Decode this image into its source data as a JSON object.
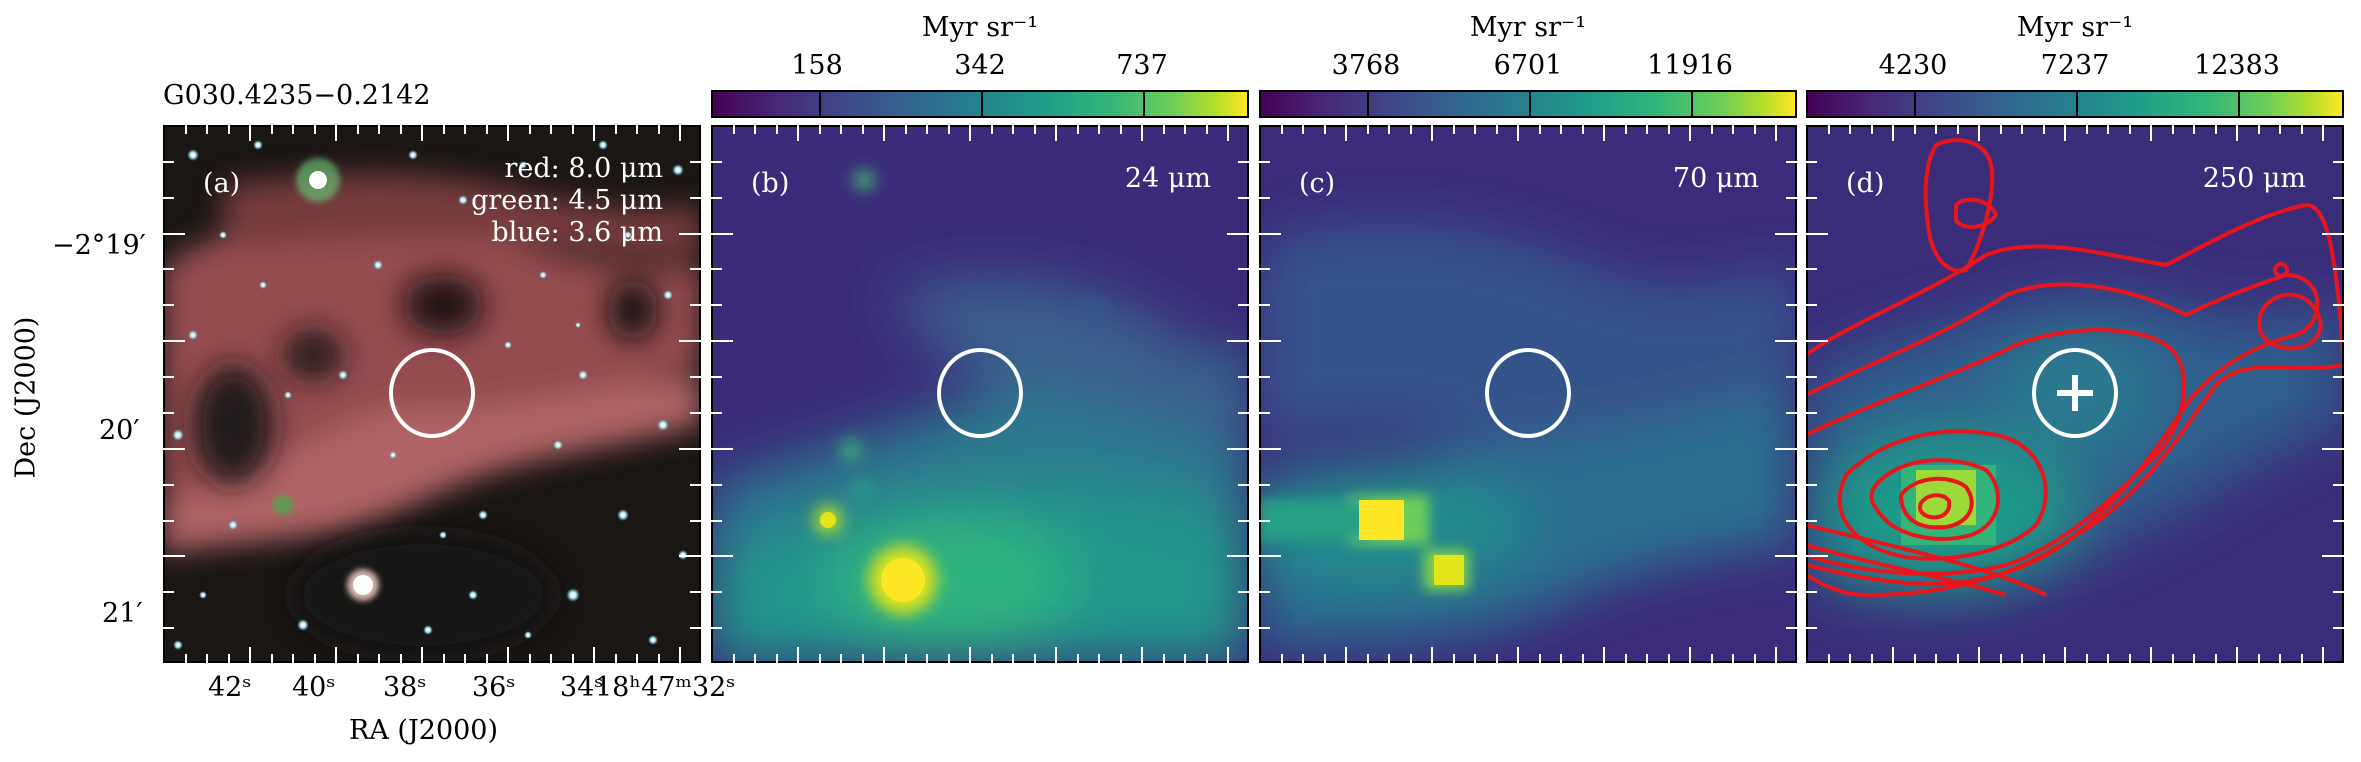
{
  "source_name": "G030.4235−0.2142",
  "panels": {
    "a": {
      "tag": "(a)",
      "rgb_red": "red: 8.0 μm",
      "rgb_green": "green: 4.5 μm",
      "rgb_blue": "blue: 3.6 μm"
    },
    "b": {
      "tag": "(b)",
      "band": "24 μm"
    },
    "c": {
      "tag": "(c)",
      "band": "70 μm"
    },
    "d": {
      "tag": "(d)",
      "band": "250 μm"
    }
  },
  "colorbars": [
    {
      "unit": "Myr sr⁻¹",
      "ticks": [
        "158",
        "342",
        "737"
      ]
    },
    {
      "unit": "Myr sr⁻¹",
      "ticks": [
        "3768",
        "6701",
        "11916"
      ]
    },
    {
      "unit": "Myr sr⁻¹",
      "ticks": [
        "4230",
        "7237",
        "12383"
      ]
    }
  ],
  "axes": {
    "ylabel": "Dec (J2000)",
    "xlabel": "RA (J2000)",
    "dec_ticks": [
      "−2°19′",
      "20′",
      "21′"
    ],
    "ra_ticks": [
      "42ˢ",
      "40ˢ",
      "38ˢ",
      "36ˢ",
      "34ˢ",
      "18ʰ47ᵐ32ˢ"
    ]
  },
  "colors": {
    "contour": "#e8161c",
    "marker": "#ffffff",
    "colormap": "viridis"
  }
}
